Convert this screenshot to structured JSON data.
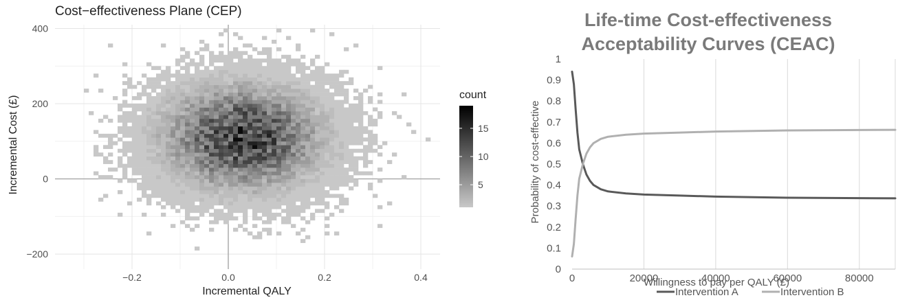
{
  "chart_data": [
    {
      "type": "heatmap",
      "title": "Cost−effectiveness Plane (CEP)",
      "xlabel": "Incremental QALY",
      "ylabel": "Incremental Cost (£)",
      "xlim": [
        -0.36,
        0.44
      ],
      "ylim": [
        -240,
        410
      ],
      "x_ticks": [
        -0.2,
        0.0,
        0.2,
        0.4
      ],
      "x_tick_labels": [
        "−0.2",
        "0.0",
        "0.2",
        "0.4"
      ],
      "y_ticks": [
        -200,
        0,
        200,
        400
      ],
      "y_tick_labels": [
        "−200",
        "0",
        "200",
        "400"
      ],
      "grid": true,
      "bin_width": [
        0.01,
        10
      ],
      "distribution": {
        "x_mean": 0.03,
        "x_sd": 0.095,
        "y_mean": 110,
        "y_sd": 80,
        "peak_count": 19
      },
      "legend": {
        "title": "count",
        "ticks": [
          5,
          10,
          15
        ],
        "tick_labels": [
          "5",
          "10",
          "15"
        ],
        "range": [
          1,
          19
        ],
        "low_color": "#c8c8c8",
        "high_color": "#000000",
        "placement": "right"
      }
    },
    {
      "type": "line",
      "title_lines": [
        "Life-time Cost-effectiveness",
        "Acceptability Curves (CEAC)"
      ],
      "xlabel": "Willingness to pay per QALY (£)",
      "ylabel": "Probability of cost-effective",
      "xlim": [
        0,
        90000
      ],
      "ylim": [
        0,
        1
      ],
      "x_ticks": [
        0,
        20000,
        40000,
        60000,
        80000
      ],
      "x_tick_labels": [
        "0",
        "20000",
        "40000",
        "60000",
        "80000"
      ],
      "y_ticks": [
        0,
        0.1,
        0.2,
        0.3,
        0.4,
        0.5,
        0.6,
        0.7,
        0.8,
        0.9,
        1
      ],
      "y_tick_labels": [
        "0",
        "0.1",
        "0.2",
        "0.3",
        "0.4",
        "0.5",
        "0.6",
        "0.7",
        "0.8",
        "0.9",
        "1"
      ],
      "grid": true,
      "legend_placement": "bottom",
      "x": [
        0,
        500,
        1000,
        1500,
        2000,
        3000,
        4000,
        5000,
        6000,
        8000,
        10000,
        15000,
        20000,
        30000,
        40000,
        60000,
        90000
      ],
      "series": [
        {
          "name": "Intervention A",
          "color": "#595959",
          "values": [
            0.94,
            0.88,
            0.76,
            0.65,
            0.57,
            0.5,
            0.45,
            0.42,
            0.4,
            0.38,
            0.37,
            0.36,
            0.355,
            0.35,
            0.345,
            0.34,
            0.337
          ]
        },
        {
          "name": "Intervention B",
          "color": "#b0b0b0",
          "values": [
            0.06,
            0.12,
            0.24,
            0.35,
            0.43,
            0.5,
            0.55,
            0.58,
            0.6,
            0.62,
            0.63,
            0.64,
            0.645,
            0.65,
            0.655,
            0.66,
            0.663
          ]
        }
      ]
    }
  ]
}
